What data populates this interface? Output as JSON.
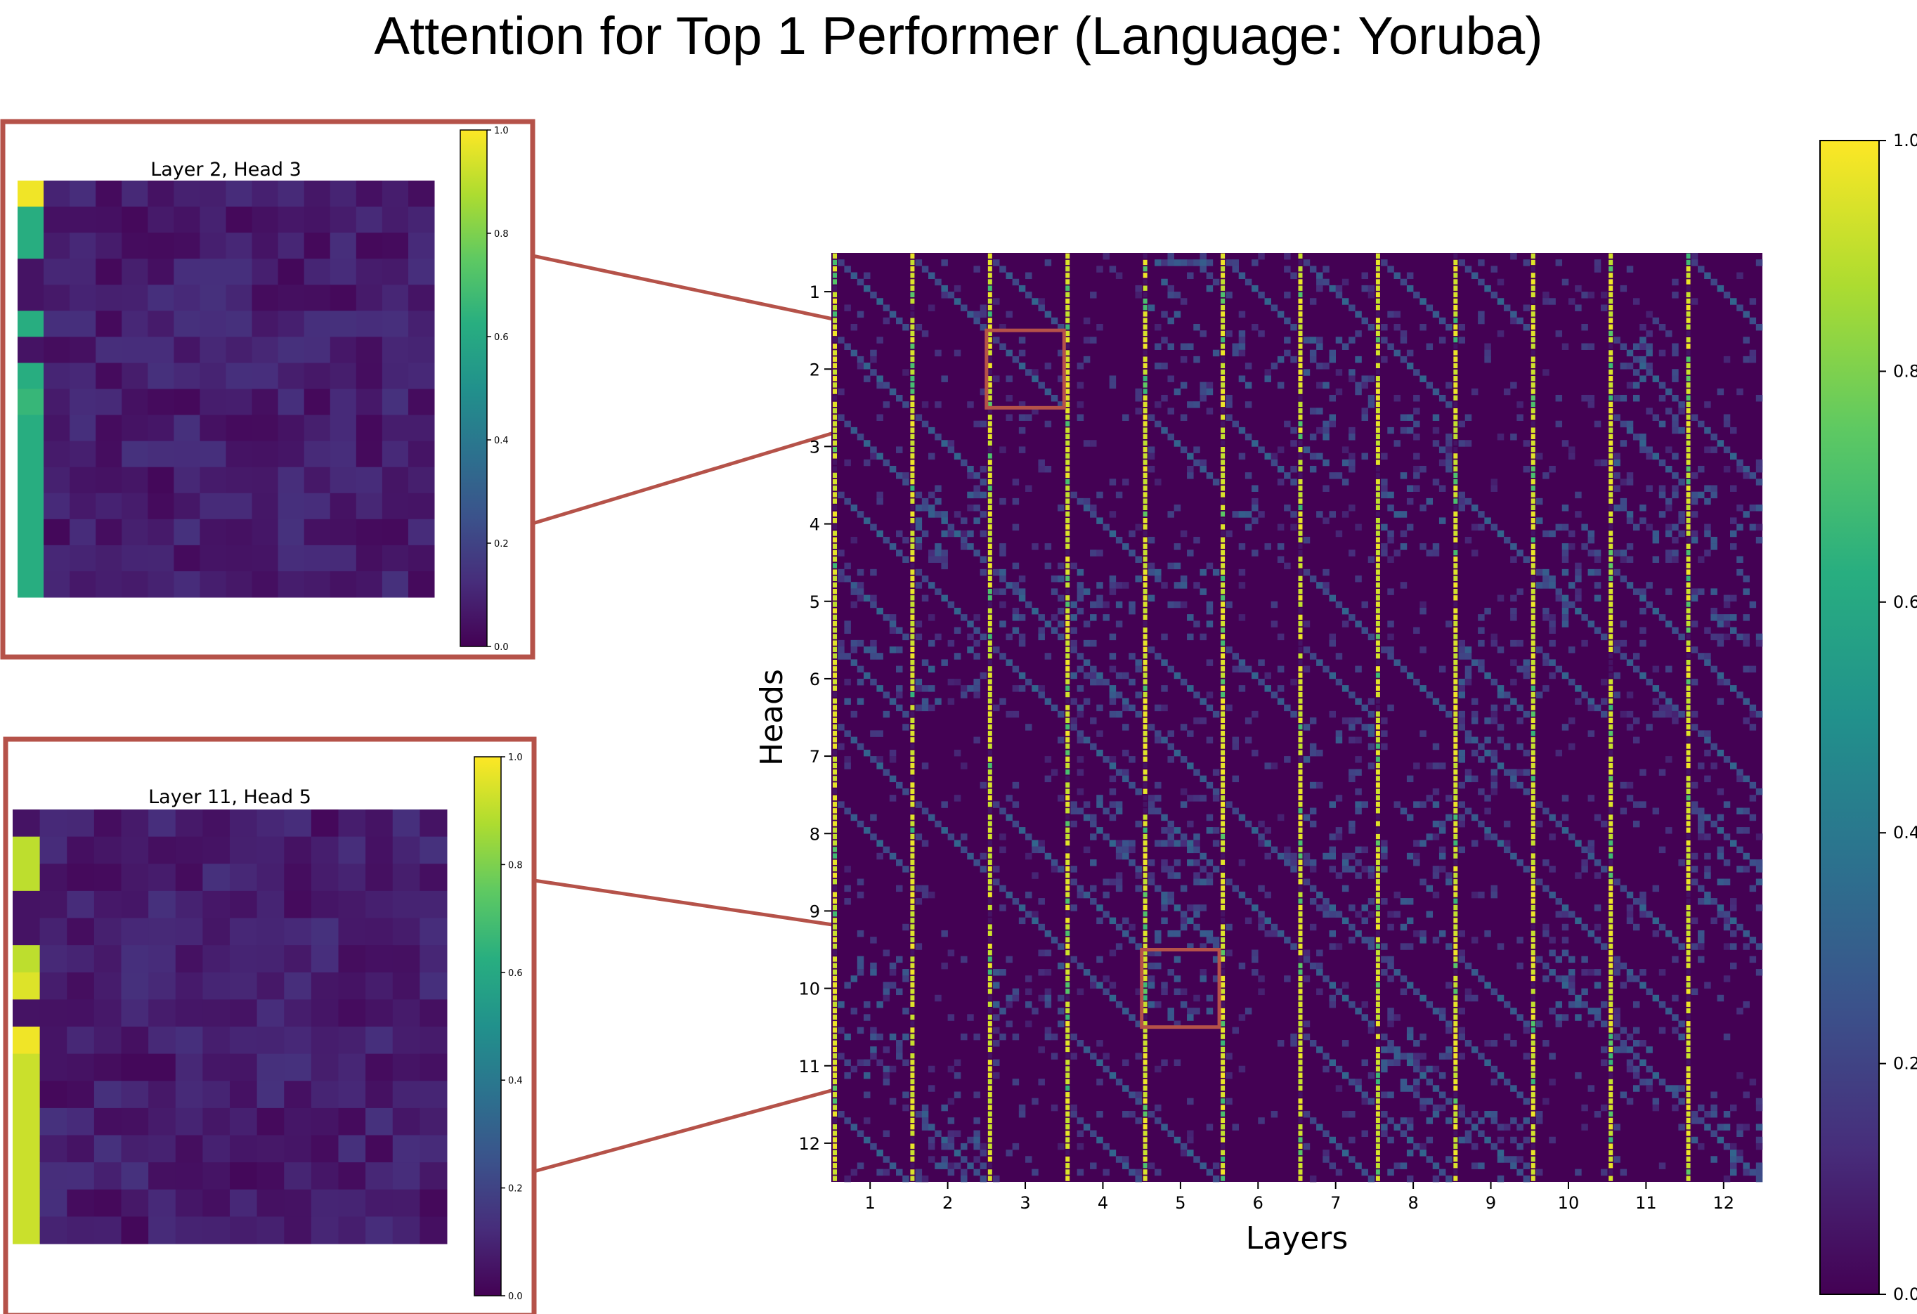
{
  "title": "Attention for Top 1 Performer (Language: Yoruba)",
  "accent_color": "#b55249",
  "colormap": "viridis",
  "chart_data": [
    {
      "type": "heatmap",
      "name": "main",
      "xlabel": "Layers",
      "ylabel": "Heads",
      "x_ticks": [
        "1",
        "2",
        "3",
        "4",
        "5",
        "6",
        "7",
        "8",
        "9",
        "10",
        "11",
        "12"
      ],
      "y_ticks": [
        "1",
        "2",
        "3",
        "4",
        "5",
        "6",
        "7",
        "8",
        "9",
        "10",
        "11",
        "12"
      ],
      "colorbar": {
        "min": 0.0,
        "max": 1.0,
        "ticks": [
          "0.0",
          "0.2",
          "0.4",
          "0.6",
          "0.8",
          "1.0"
        ]
      },
      "grid": false,
      "tokens_per_cell": 12,
      "highlighted_cells": [
        {
          "layer": 3,
          "head": 2
        },
        {
          "layer": 5,
          "head": 10
        }
      ]
    },
    {
      "type": "heatmap",
      "name": "Layer 2, Head 3",
      "title": "Layer 2, Head 3",
      "first_column": [
        0.98,
        0.62,
        0.62,
        0.05,
        0.05,
        0.62,
        0.05,
        0.62,
        0.66,
        0.62,
        0.62,
        0.62,
        0.62,
        0.62,
        0.62,
        0.62
      ],
      "colorbar": {
        "min": 0.0,
        "max": 1.0,
        "ticks": [
          "0.0",
          "0.2",
          "0.4",
          "0.6",
          "0.8",
          "1.0"
        ]
      }
    },
    {
      "type": "heatmap",
      "name": "Layer 11, Head 5",
      "title": "Layer 11, Head 5",
      "first_column": [
        0.05,
        0.9,
        0.9,
        0.05,
        0.05,
        0.9,
        0.95,
        0.05,
        0.98,
        0.92,
        0.92,
        0.92,
        0.92,
        0.92,
        0.92,
        0.92
      ],
      "colorbar": {
        "min": 0.0,
        "max": 1.0,
        "ticks": [
          "0.0",
          "0.2",
          "0.4",
          "0.6",
          "0.8",
          "1.0"
        ]
      }
    }
  ]
}
